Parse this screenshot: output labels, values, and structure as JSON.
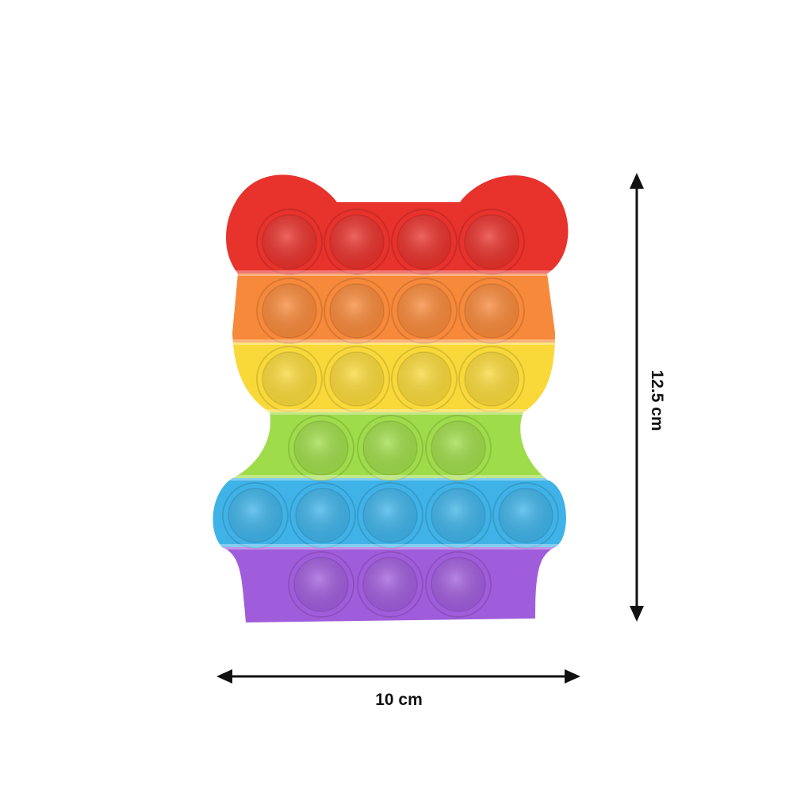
{
  "product": {
    "description_visible": "",
    "band_colors": [
      "#e8322c",
      "#f7893a",
      "#f9d93a",
      "#9fdc4a",
      "#3fb3e8",
      "#a05ddb"
    ]
  },
  "dimensions": {
    "height_label": "12.5 cm",
    "width_label": "10 cm"
  }
}
